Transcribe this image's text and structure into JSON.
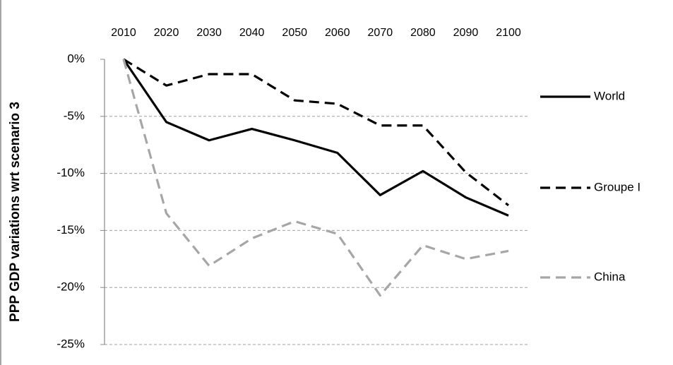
{
  "chart_data": {
    "type": "line",
    "y_axis_label": "PPP GDP variations wrt scenario 3",
    "categories": [
      "2010",
      "2020",
      "2030",
      "2040",
      "2050",
      "2060",
      "2070",
      "2080",
      "2090",
      "2100"
    ],
    "series": [
      {
        "name": "World",
        "color": "#000000",
        "line_style": "solid",
        "values": [
          0,
          -5.5,
          -7.1,
          -6.1,
          -7.1,
          -8.2,
          -11.9,
          -9.8,
          -12.1,
          -13.7
        ]
      },
      {
        "name": "Groupe I",
        "color": "#000000",
        "line_style": "dashed",
        "values": [
          0,
          -2.3,
          -1.3,
          -1.3,
          -3.6,
          -3.9,
          -5.8,
          -5.8,
          -9.9,
          -12.8
        ]
      },
      {
        "name": "China",
        "color": "#a6a6a6",
        "line_style": "dashed",
        "values": [
          0,
          -13.5,
          -18.1,
          -15.7,
          -14.2,
          -15.3,
          -20.7,
          -16.3,
          -17.5,
          -16.8
        ]
      }
    ],
    "ylim": [
      -25,
      0
    ],
    "yticks": [
      {
        "value": 0,
        "label": "0%"
      },
      {
        "value": -5,
        "label": "-5%"
      },
      {
        "value": -10,
        "label": "-10%"
      },
      {
        "value": -15,
        "label": "-15%"
      },
      {
        "value": -20,
        "label": "-20%"
      },
      {
        "value": -25,
        "label": "-25%"
      }
    ],
    "grid": true,
    "legend": "right"
  }
}
